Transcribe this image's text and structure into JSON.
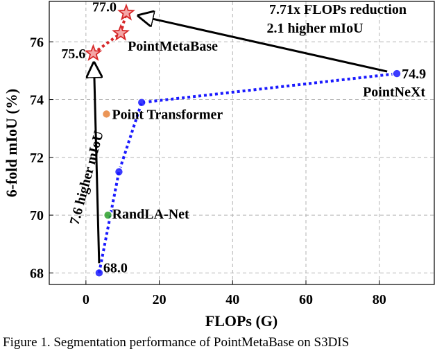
{
  "chart_data": {
    "type": "scatter",
    "xlabel": "FLOPs (G)",
    "ylabel": "6-fold mIoU (%)",
    "xlim": [
      -10,
      95
    ],
    "ylim": [
      67.6,
      77.4
    ],
    "x_ticks": [
      "0",
      "20",
      "40",
      "60",
      "80"
    ],
    "x_tick_values": [
      0,
      20,
      40,
      60,
      80
    ],
    "y_ticks": [
      "68",
      "70",
      "72",
      "74",
      "76"
    ],
    "y_tick_values": [
      68,
      70,
      72,
      74,
      76
    ],
    "grid": true,
    "series": [
      {
        "name": "PointMetaBase",
        "color": "#d62728",
        "marker": "star",
        "line": "dotted",
        "points": [
          {
            "x": 2.0,
            "y": 75.6
          },
          {
            "x": 9.5,
            "y": 76.3
          },
          {
            "x": 11.0,
            "y": 77.0
          }
        ]
      },
      {
        "name": "PointNeXt",
        "color": "#1a1aff",
        "marker": "circle",
        "line": "dotted",
        "points": [
          {
            "x": 3.6,
            "y": 68.0
          },
          {
            "x": 9.0,
            "y": 71.5
          },
          {
            "x": 15.2,
            "y": 73.9
          },
          {
            "x": 84.8,
            "y": 74.9
          }
        ]
      },
      {
        "name": "Point Transformer",
        "color": "#e8823a",
        "marker": "circle",
        "line": "none",
        "points": [
          {
            "x": 5.6,
            "y": 73.5
          }
        ]
      },
      {
        "name": "RandLA-Net",
        "color": "#2ca02c",
        "marker": "circle",
        "line": "none",
        "points": [
          {
            "x": 6.0,
            "y": 70.0
          }
        ]
      }
    ],
    "value_labels": [
      "77.0",
      "75.6",
      "74.9",
      "68.0"
    ],
    "annotations": {
      "flops_reduction": "7.71x FLOPs reduction",
      "higher_miou_top": "2.1 higher mIoU",
      "higher_miou_left": "7.6 higher mIoU"
    }
  },
  "caption": "Figure 1. Segmentation performance of PointMetaBase on S3DIS"
}
